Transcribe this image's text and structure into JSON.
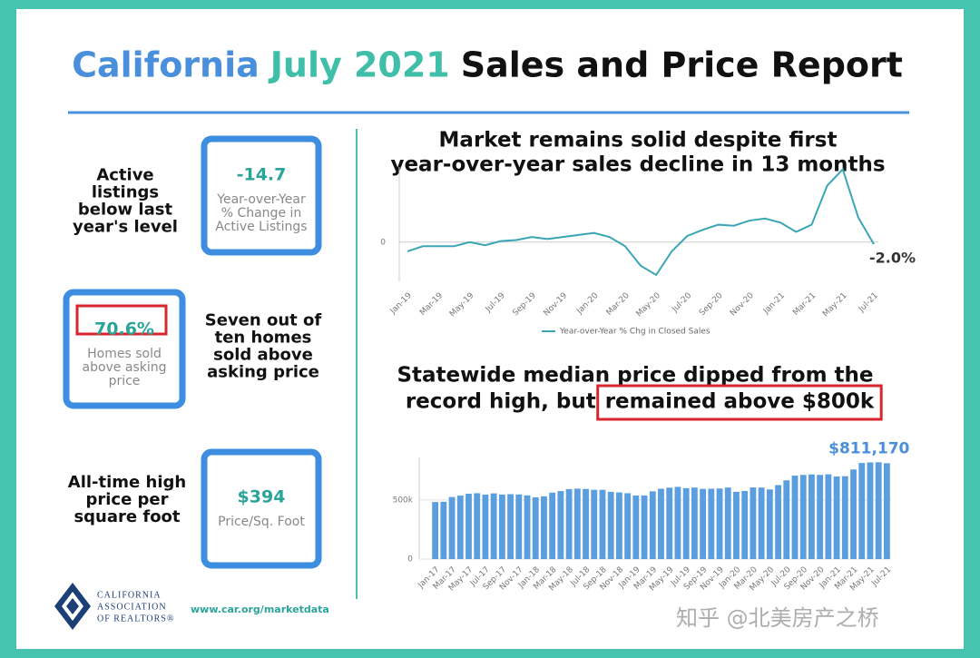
{
  "header": {
    "title": [
      "California",
      "July 2021",
      "Sales and Price Report"
    ]
  },
  "panels": [
    {
      "label": [
        "Active",
        "listings",
        "below last",
        "year's level"
      ],
      "value": "-14.7",
      "caption": [
        "Year-over-Year",
        "% Change in",
        "Active Listings"
      ]
    },
    {
      "value": "70.6%",
      "caption": [
        "Homes sold",
        "above asking",
        "price"
      ],
      "label": [
        "Seven out of",
        "ten homes",
        "sold above",
        "asking price"
      ]
    },
    {
      "label": [
        "All-time high",
        "price per",
        "square foot"
      ],
      "value": "$394",
      "caption": [
        "Price/Sq. Foot"
      ]
    }
  ],
  "footer": {
    "logo": [
      "CALIFORNIA",
      "ASSOCIATION",
      "OF REALTORS®"
    ],
    "url": "www.car.org/marketdata",
    "watermark": "知乎 @北美房产之桥"
  },
  "chart_data": [
    {
      "type": "line",
      "title": [
        "Market remains solid despite first",
        "year-over-year sales decline in 13 months"
      ],
      "categories": [
        "Jan-19",
        null,
        "Mar-19",
        null,
        "May-19",
        null,
        "Jul-19",
        null,
        "Sep-19",
        null,
        "Nov-19",
        null,
        "Jan-20",
        null,
        "Mar-20",
        null,
        "May-20",
        null,
        "Jul-20",
        null,
        "Sep-20",
        null,
        "Nov-20",
        null,
        "Jan-21",
        null,
        "Mar-21",
        null,
        "May-21",
        null,
        "Jul-21"
      ],
      "series": [
        {
          "name": "Year-over-Year % Chg in Closed Sales",
          "color": "#3aa6b5",
          "values": [
            -9,
            -4,
            -4,
            -4,
            0,
            -3,
            1,
            2,
            5,
            3,
            5,
            7,
            9,
            5,
            -4,
            -23,
            -32,
            -9,
            6,
            12,
            17,
            16,
            21,
            23,
            19,
            10,
            17,
            55,
            71,
            24,
            -2.0
          ],
          "value_labels": [
            null,
            null,
            null,
            null,
            null,
            null,
            null,
            null,
            null,
            null,
            null,
            null,
            null,
            null,
            null,
            null,
            null,
            null,
            null,
            null,
            null,
            null,
            null,
            null,
            null,
            null,
            null,
            null,
            null,
            null,
            "-2.0%"
          ]
        }
      ],
      "ylim": [
        -40,
        75
      ],
      "yticks": [
        0
      ],
      "grid": true,
      "legend": "bottom"
    },
    {
      "type": "bar",
      "title": [
        "Statewide median price dipped from the",
        "record high, but",
        "remained above $800k"
      ],
      "categories": [
        "Jan-17",
        null,
        "Mar-17",
        null,
        "May-17",
        null,
        "Jul-17",
        null,
        "Sep-17",
        null,
        "Nov-17",
        null,
        "Jan-18",
        null,
        "Mar-18",
        null,
        "May-18",
        null,
        "Jul-18",
        null,
        "Sep-18",
        null,
        "Nov-18",
        null,
        "Jan-19",
        null,
        "Mar-19",
        null,
        "May-19",
        null,
        "Jul-19",
        null,
        "Sep-19",
        null,
        "Nov-19",
        null,
        "Jan-20",
        null,
        "Mar-20",
        null,
        "May-20",
        null,
        "Jul-20",
        null,
        "Sep-20",
        null,
        "Nov-20",
        null,
        "Jan-21",
        null,
        "Mar-21",
        null,
        "May-21",
        null,
        "Jul-21"
      ],
      "values": [
        483000,
        485000,
        525000,
        537000,
        553000,
        557000,
        545000,
        556000,
        546000,
        549000,
        547000,
        539000,
        523000,
        531000,
        562000,
        575000,
        592000,
        596000,
        593000,
        586000,
        586000,
        569000,
        564000,
        557000,
        538000,
        538000,
        573000,
        595000,
        604000,
        611000,
        600000,
        605000,
        594000,
        595000,
        597000,
        605000,
        569000,
        576000,
        606000,
        605000,
        589000,
        626000,
        666000,
        706000,
        712000,
        716000,
        712000,
        717000,
        699000,
        701000,
        758000,
        813000,
        818000,
        819000,
        811170
      ],
      "value_labels": [
        null,
        null,
        null,
        null,
        null,
        null,
        null,
        null,
        null,
        null,
        null,
        null,
        null,
        null,
        null,
        null,
        null,
        null,
        null,
        null,
        null,
        null,
        null,
        null,
        null,
        null,
        null,
        null,
        null,
        null,
        null,
        null,
        null,
        null,
        null,
        null,
        null,
        null,
        null,
        null,
        null,
        null,
        null,
        null,
        null,
        null,
        null,
        null,
        null,
        null,
        null,
        null,
        null,
        null,
        "$811,170"
      ],
      "color": "#5a9ee0",
      "ylim": [
        0,
        860000
      ],
      "yticks": [
        0,
        {
          "value": 500000,
          "label": "500k"
        }
      ],
      "grid": true
    }
  ]
}
